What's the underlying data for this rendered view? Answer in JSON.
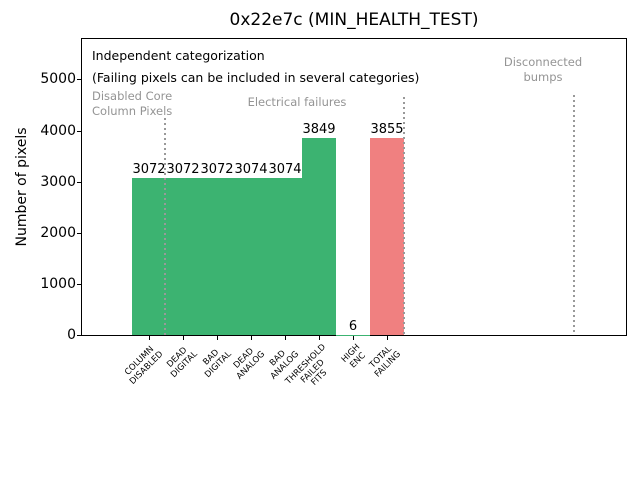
{
  "chart_data": {
    "type": "bar",
    "title": "0x22e7c (MIN_HEALTH_TEST)",
    "ylabel": "Number of pixels",
    "xlabel": "",
    "ylim": [
      0,
      5790
    ],
    "yticks": [
      0,
      1000,
      2000,
      3000,
      4000,
      5000
    ],
    "grid": false,
    "legend": "none",
    "categories": [
      "COLUMN\nDISABLED",
      "DEAD\nDIGITAL",
      "BAD\nDIGITAL",
      "DEAD\nANALOG",
      "BAD\nANALOG",
      "THRESHOLD\nFAILED\nFITS",
      "HIGH\nENC",
      "TOTAL\nFAILING"
    ],
    "values": [
      3072,
      3072,
      3072,
      3074,
      3074,
      3849,
      6,
      3855
    ],
    "bar_labels": [
      "3072",
      "3072",
      "3072",
      "3074",
      "3074",
      "3849",
      "6",
      "3855"
    ],
    "bar_colors": [
      "#3cb371",
      "#3cb371",
      "#3cb371",
      "#3cb371",
      "#3cb371",
      "#3cb371",
      "#3cb371",
      "#f08080"
    ],
    "colors": {
      "pass_green": "#3cb371",
      "fail_red": "#f08080",
      "section_gray": "#949494",
      "axis_black": "#000000"
    },
    "annotations": {
      "note_line1": "Independent categorization",
      "note_line2": "(Failing pixels can be included in several categories)",
      "sections": [
        {
          "label": "Disabled Core\nColumn Pixels"
        },
        {
          "label": "Electrical failures"
        },
        {
          "label": "Disconnected\nbumps"
        }
      ]
    }
  }
}
